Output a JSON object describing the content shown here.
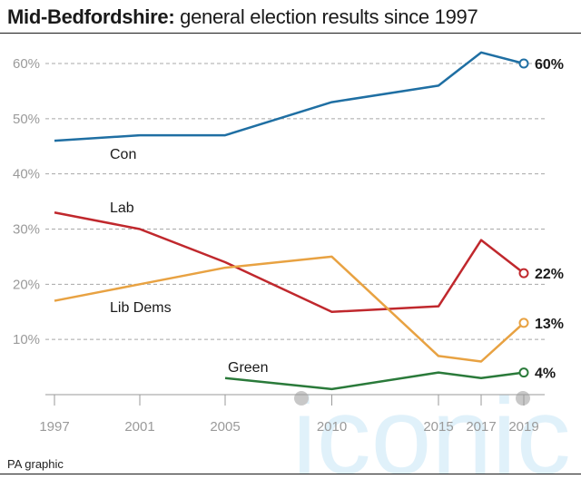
{
  "title": {
    "bold": "Mid-Bedfordshire:",
    "rest": " general election results since 1997"
  },
  "source": "PA graphic",
  "watermark": {
    "text": "iconic",
    "color": "#d6ecf8"
  },
  "chart_data": {
    "type": "line",
    "x": [
      1997,
      2001,
      2005,
      2010,
      2015,
      2017,
      2019
    ],
    "x_tick_labels": [
      "1997",
      "2001",
      "2005",
      "2010",
      "2015",
      "2017",
      "2019"
    ],
    "y_tick_values": [
      10,
      20,
      30,
      40,
      50,
      60
    ],
    "y_tick_labels": [
      "10%",
      "20%",
      "30%",
      "40%",
      "50%",
      "60%"
    ],
    "ylim": [
      0,
      65
    ],
    "grid": true,
    "series": [
      {
        "name": "Con",
        "color": "#1f6fa3",
        "values": [
          46,
          47,
          47,
          53,
          56,
          62,
          60
        ],
        "end_label": "60%"
      },
      {
        "name": "Lab",
        "color": "#c0282d",
        "values": [
          33,
          30,
          24,
          15,
          16,
          28,
          22
        ],
        "end_label": "22%"
      },
      {
        "name": "Lib Dems",
        "color": "#e8a242",
        "values": [
          17,
          20,
          23,
          25,
          7,
          6,
          13
        ],
        "end_label": "13%"
      },
      {
        "name": "Green",
        "color": "#2a7a3a",
        "values": [
          null,
          null,
          3,
          1,
          4,
          3,
          4
        ],
        "end_label": "4%"
      }
    ]
  }
}
